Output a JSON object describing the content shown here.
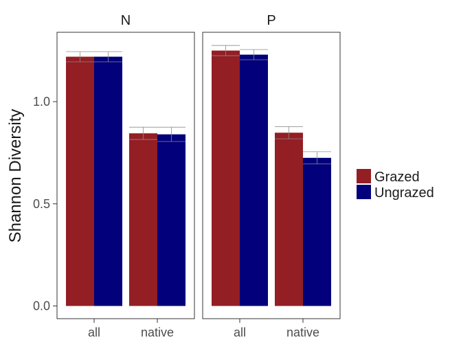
{
  "chart_data": {
    "type": "bar",
    "ylabel": "Shannon Diversity",
    "ylim": [
      0,
      1.3
    ],
    "yticks": [
      "0.0",
      "0.5",
      "1.0"
    ],
    "ytick_values": [
      0.0,
      0.5,
      1.0
    ],
    "categories": [
      "all",
      "native"
    ],
    "legend_position": "right",
    "grid": false,
    "series": [
      {
        "name": "Grazed",
        "color": "#931e24"
      },
      {
        "name": "Ungrazed",
        "color": "#02007a"
      }
    ],
    "panels": [
      {
        "title": "N",
        "groups": [
          {
            "category": "all",
            "values": [
              1.22,
              1.22
            ],
            "errors": [
              0.025,
              0.025
            ]
          },
          {
            "category": "native",
            "values": [
              0.845,
              0.84
            ],
            "errors": [
              0.03,
              0.035
            ]
          }
        ]
      },
      {
        "title": "P",
        "groups": [
          {
            "category": "all",
            "values": [
              1.25,
              1.23
            ],
            "errors": [
              0.025,
              0.025
            ]
          },
          {
            "category": "native",
            "values": [
              0.848,
              0.725
            ],
            "errors": [
              0.03,
              0.03
            ]
          }
        ]
      }
    ]
  }
}
